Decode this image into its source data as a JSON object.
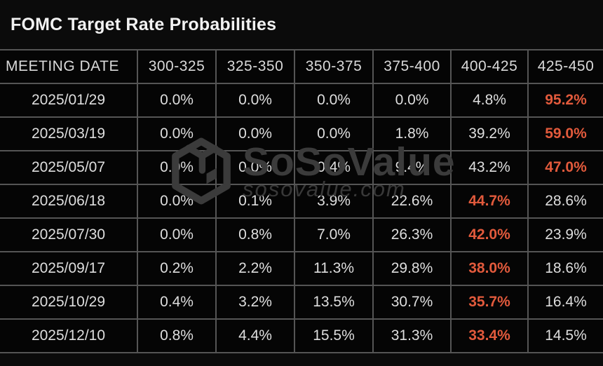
{
  "title": "FOMC Target Rate Probabilities",
  "watermark": {
    "brand": "SoSoValue",
    "domain": "sosovalue.com"
  },
  "colors": {
    "background": "#0b0b0b",
    "cell_background": "#050505",
    "border": "#555555",
    "title_text": "#f2f2f2",
    "cell_text": "#dedede",
    "accent_highlight": "#e25a3c",
    "watermark": "#3b3b3b"
  },
  "chart_data": {
    "type": "table",
    "title": "FOMC Target Rate Probabilities",
    "columns": [
      "MEETING DATE",
      "300-325",
      "325-350",
      "350-375",
      "375-400",
      "400-425",
      "425-450"
    ],
    "rows": [
      {
        "date": "2025/01/29",
        "values": [
          "0.0%",
          "0.0%",
          "0.0%",
          "0.0%",
          "4.8%",
          "95.2%"
        ],
        "highlight_index": 5
      },
      {
        "date": "2025/03/19",
        "values": [
          "0.0%",
          "0.0%",
          "0.0%",
          "1.8%",
          "39.2%",
          "59.0%"
        ],
        "highlight_index": 5
      },
      {
        "date": "2025/05/07",
        "values": [
          "0.0%",
          "0.0%",
          "0.4%",
          "9.4%",
          "43.2%",
          "47.0%"
        ],
        "highlight_index": 5
      },
      {
        "date": "2025/06/18",
        "values": [
          "0.0%",
          "0.1%",
          "3.9%",
          "22.6%",
          "44.7%",
          "28.6%"
        ],
        "highlight_index": 4
      },
      {
        "date": "2025/07/30",
        "values": [
          "0.0%",
          "0.8%",
          "7.0%",
          "26.3%",
          "42.0%",
          "23.9%"
        ],
        "highlight_index": 4
      },
      {
        "date": "2025/09/17",
        "values": [
          "0.2%",
          "2.2%",
          "11.3%",
          "29.8%",
          "38.0%",
          "18.6%"
        ],
        "highlight_index": 4
      },
      {
        "date": "2025/10/29",
        "values": [
          "0.4%",
          "3.2%",
          "13.5%",
          "30.7%",
          "35.7%",
          "16.4%"
        ],
        "highlight_index": 4
      },
      {
        "date": "2025/12/10",
        "values": [
          "0.8%",
          "4.4%",
          "15.5%",
          "31.3%",
          "33.4%",
          "14.5%"
        ],
        "highlight_index": 4
      }
    ]
  }
}
